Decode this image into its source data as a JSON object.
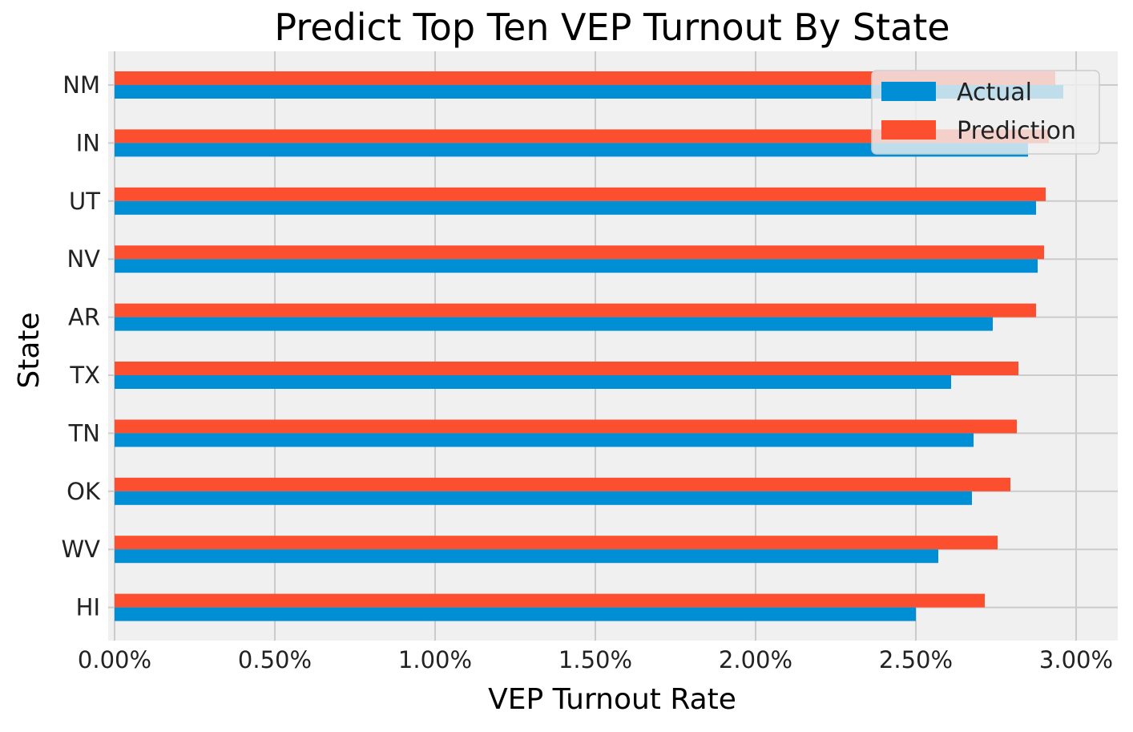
{
  "chart_data": {
    "type": "bar",
    "orientation": "horizontal",
    "title": "Predict Top Ten VEP Turnout By State",
    "xlabel": "VEP Turnout Rate",
    "ylabel": "State",
    "categories": [
      "NM",
      "IN",
      "UT",
      "NV",
      "AR",
      "TX",
      "TN",
      "OK",
      "WV",
      "HI"
    ],
    "series": [
      {
        "name": "Actual",
        "color": "#008fd5",
        "values": [
          2.96,
          2.85,
          2.875,
          2.88,
          2.74,
          2.61,
          2.68,
          2.675,
          2.57,
          2.5
        ]
      },
      {
        "name": "Prediction",
        "color": "#fc4f30",
        "values": [
          2.935,
          2.915,
          2.905,
          2.9,
          2.875,
          2.82,
          2.815,
          2.795,
          2.755,
          2.715
        ]
      }
    ],
    "xlim": [
      0,
      3.12
    ],
    "xticks": [
      0,
      0.5,
      1.0,
      1.5,
      2.0,
      2.5,
      3.0
    ],
    "xtick_labels": [
      "0.00%",
      "0.50%",
      "1.00%",
      "1.50%",
      "2.00%",
      "2.50%",
      "3.00%"
    ],
    "grid": true,
    "legend_position": "top-right",
    "background": "#f0f0f0"
  }
}
